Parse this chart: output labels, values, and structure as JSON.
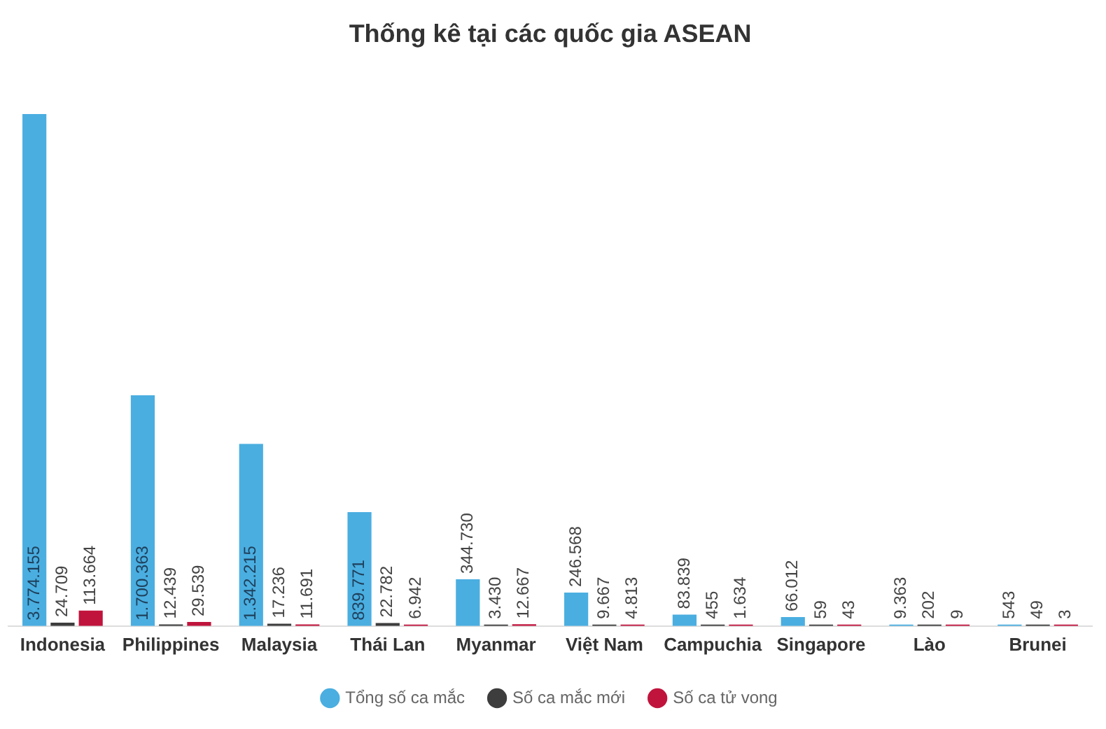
{
  "chart_data": {
    "type": "bar",
    "title": "Thống kê tại các quốc gia ASEAN",
    "categories": [
      "Indonesia",
      "Philippines",
      "Malaysia",
      "Thái Lan",
      "Myanmar",
      "Việt Nam",
      "Campuchia",
      "Singapore",
      "Lào",
      "Brunei"
    ],
    "series": [
      {
        "name": "Tổng số ca mắc",
        "color": "#4aaee0",
        "values": [
          3774155,
          1700363,
          1342215,
          839771,
          344730,
          246568,
          83839,
          66012,
          9363,
          543
        ],
        "value_labels": [
          "3.774.155",
          "1.700.363",
          "1.342.215",
          "839.771",
          "344.730",
          "246.568",
          "83.839",
          "66.012",
          "9.363",
          "543"
        ]
      },
      {
        "name": "Số ca mắc mới",
        "color": "#3d3d3d",
        "values": [
          24709,
          12439,
          17236,
          22782,
          3430,
          9667,
          455,
          59,
          202,
          49
        ],
        "value_labels": [
          "24.709",
          "12.439",
          "17.236",
          "22.782",
          "3.430",
          "9.667",
          "455",
          "59",
          "202",
          "49"
        ]
      },
      {
        "name": "Số ca tử vong",
        "color": "#c0143c",
        "values": [
          113664,
          29539,
          11691,
          6942,
          12667,
          4813,
          1634,
          43,
          9,
          3
        ],
        "value_labels": [
          "113.664",
          "29.539",
          "11.691",
          "6.942",
          "12.667",
          "4.813",
          "1.634",
          "43",
          "9",
          "3"
        ]
      }
    ],
    "legend": "bottom",
    "grid": false
  }
}
